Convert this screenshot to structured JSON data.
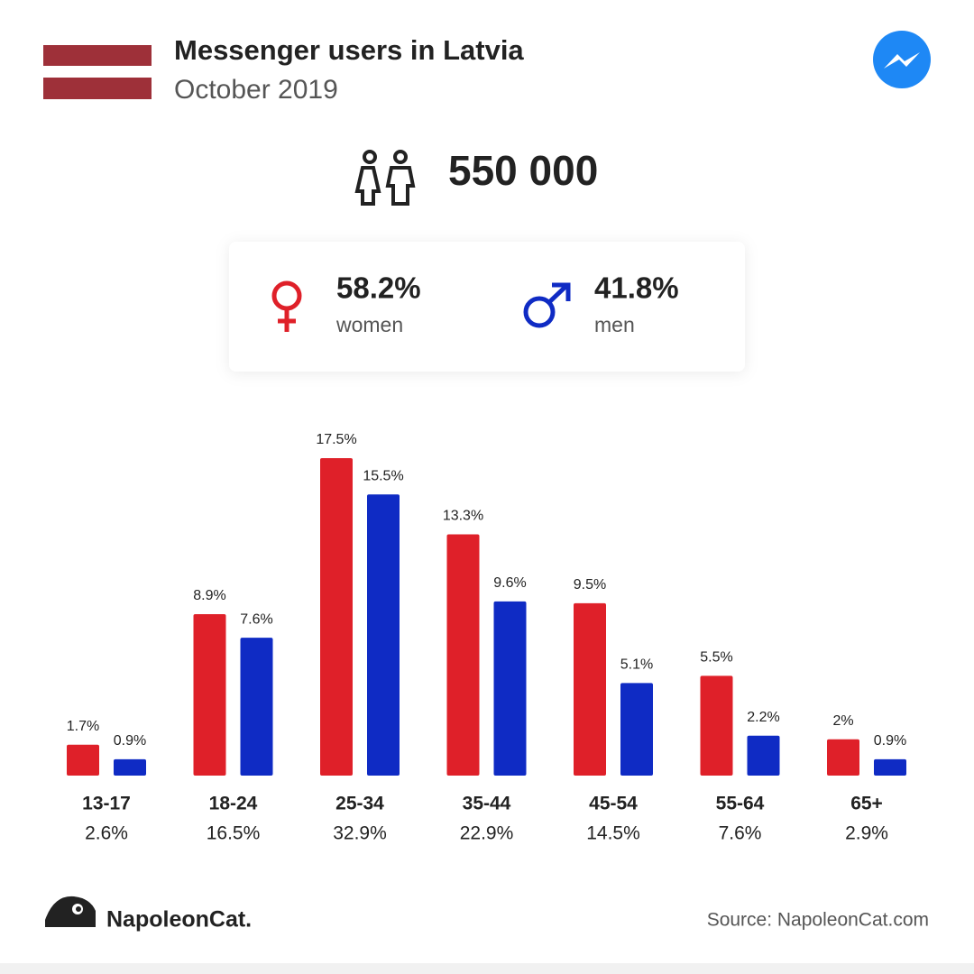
{
  "header": {
    "title": "Messenger users in Latvia",
    "subtitle": "October 2019"
  },
  "total_users": "550 000",
  "gender": {
    "women_share": "58.2%",
    "men_share": "41.8%"
  },
  "chart_data": {
    "type": "bar",
    "categories": [
      "13-17",
      "18-24",
      "25-34",
      "35-44",
      "45-54",
      "55-64",
      "65+"
    ],
    "category_totals": [
      2.6,
      16.5,
      32.9,
      22.9,
      14.5,
      7.6,
      2.9
    ],
    "category_total_labels": [
      "2.6%",
      "16.5%",
      "32.9%",
      "22.9%",
      "14.5%",
      "7.6%",
      "2.9%"
    ],
    "series": [
      {
        "name": "women",
        "color": "#df2029",
        "values": [
          1.7,
          8.9,
          17.5,
          13.3,
          9.5,
          5.5,
          2
        ],
        "value_labels": [
          "1.7%",
          "8.9%",
          "17.5%",
          "13.3%",
          "9.5%",
          "5.5%",
          "2%"
        ]
      },
      {
        "name": "men",
        "color": "#0f2bc4",
        "values": [
          0.9,
          7.6,
          15.5,
          9.6,
          5.1,
          2.2,
          0.9
        ],
        "value_labels": [
          "0.9%",
          "7.6%",
          "15.5%",
          "9.6%",
          "5.1%",
          "2.2%",
          "0.9%"
        ]
      }
    ]
  },
  "footer": {
    "brand": "NapoleonCat.",
    "source": "Source: NapoleonCat.com"
  }
}
